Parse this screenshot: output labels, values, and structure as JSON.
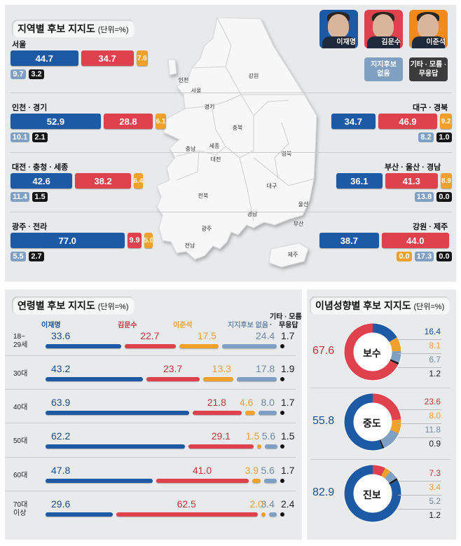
{
  "colors": {
    "lee_jaemyung": "#1d5aa6",
    "kim_moonsoo": "#e0424d",
    "lee_junseok": "#f0a02b",
    "no_candidate": "#7f9fc3",
    "other": "#151515",
    "lee_text": "#1c4f8e",
    "kim_text": "#c7333d",
    "junseok_text": "#e9a141",
    "nocand_text": "#6f89a8"
  },
  "regional": {
    "title": "지역별 후보 지지도",
    "unit": "(단위=%)",
    "legend": {
      "candidates": [
        {
          "name": "이재명",
          "bg": "#1d5aa6"
        },
        {
          "name": "김문수",
          "bg": "#e0424d"
        },
        {
          "name": "이준석",
          "bg": "#f08a1b"
        }
      ],
      "no_candidate": "지지후보 없음",
      "no_candidate_lines": [
        "지지후보",
        "없음"
      ],
      "other_lines": [
        "기타 · 모름 ·",
        "무응답"
      ]
    },
    "map_labels": [
      "인천",
      "서울",
      "경기",
      "강원",
      "충북",
      "충남",
      "세종",
      "대전",
      "경북",
      "대구",
      "전북",
      "경남",
      "울산",
      "부산",
      "광주",
      "전남",
      "제주"
    ]
  },
  "chart_data": [
    {
      "type": "bar",
      "title": "지역별 후보 지지도",
      "unit": "(단위=%)",
      "series_names": [
        "이재명",
        "김문수",
        "이준석",
        "지지후보 없음",
        "기타·모름·무응답"
      ],
      "categories": [
        "서울",
        "인천 · 경기",
        "대전 · 충청 · 세종",
        "광주 · 전라",
        "대구 · 경북",
        "부산 · 울산 · 경남",
        "강원 · 제주"
      ],
      "values": [
        [
          44.7,
          34.7,
          7.6,
          9.7,
          3.2
        ],
        [
          52.9,
          28.8,
          6.1,
          10.1,
          2.1
        ],
        [
          42.6,
          38.2,
          6.4,
          11.4,
          1.5
        ],
        [
          77.0,
          9.9,
          5.0,
          5.5,
          2.7
        ],
        [
          34.7,
          46.9,
          9.2,
          8.2,
          1.0
        ],
        [
          36.1,
          41.3,
          8.9,
          13.8,
          0.0
        ],
        [
          38.7,
          44.0,
          0.0,
          17.3,
          0.0
        ]
      ],
      "labels": [
        [
          "44.7",
          "34.7",
          "7.6",
          "9.7",
          "3.2"
        ],
        [
          "52.9",
          "28.8",
          "6.1",
          "10.1",
          "2.1"
        ],
        [
          "42.6",
          "38.2",
          "6.4",
          "11.4",
          "1.5"
        ],
        [
          "77.0",
          "9.9",
          "5.0",
          "5.5",
          "2.7"
        ],
        [
          "34.7",
          "46.9",
          "9.2",
          "8.2",
          "1.0"
        ],
        [
          "36.1",
          "41.3",
          "8.9",
          "13.8",
          "0.0"
        ],
        [
          "38.7",
          "44.0",
          "0.0",
          "17.3",
          "0.0"
        ]
      ]
    },
    {
      "type": "bar",
      "title": "연령별 후보 지지도",
      "unit": "(단위=%)",
      "series_names": [
        "이재명",
        "김문수",
        "이준석",
        "지지후보 없음",
        "기타 · 모름 · 무응답"
      ],
      "categories": [
        "18~ 29세",
        "30대",
        "40대",
        "50대",
        "60대",
        "70대 이상"
      ],
      "category_lines": [
        [
          "18~",
          "29세"
        ],
        [
          "30대"
        ],
        [
          "40대"
        ],
        [
          "50대"
        ],
        [
          "60대"
        ],
        [
          "70대",
          "이상"
        ]
      ],
      "values": [
        [
          33.6,
          22.7,
          17.5,
          24.4,
          1.7
        ],
        [
          43.2,
          23.7,
          13.3,
          17.8,
          1.9
        ],
        [
          63.9,
          21.8,
          4.6,
          8.0,
          1.7
        ],
        [
          62.2,
          29.1,
          1.5,
          5.6,
          1.5
        ],
        [
          47.8,
          41.0,
          3.9,
          5.6,
          1.7
        ],
        [
          29.6,
          62.5,
          2.0,
          3.4,
          2.4
        ]
      ],
      "labels": [
        [
          "33.6",
          "22.7",
          "17.5",
          "24.4",
          "1.7"
        ],
        [
          "43.2",
          "23.7",
          "13.3",
          "17.8",
          "1.9"
        ],
        [
          "63.9",
          "21.8",
          "4.6",
          "8.0",
          "1.7"
        ],
        [
          "62.2",
          "29.1",
          "1.5",
          "5.6",
          "1.5"
        ],
        [
          "47.8",
          "41.0",
          "3.9",
          "5.6",
          "1.7"
        ],
        [
          "29.6",
          "62.5",
          "2.0",
          "3.4",
          "2.4"
        ]
      ],
      "header_lines": [
        "이재명",
        "김문수",
        "이준석",
        "지지후보 없음",
        "기타 · 모름 ·",
        "무응답"
      ]
    },
    {
      "type": "pie",
      "title": "이념성향별 후보 지지도",
      "unit": "(단위=%)",
      "series_names": [
        "이재명",
        "김문수",
        "이준석",
        "지지후보 없음",
        "기타·모름·무응답"
      ],
      "categories": [
        "보수",
        "중도",
        "진보"
      ],
      "values": [
        [
          16.4,
          67.6,
          8.1,
          6.7,
          1.2
        ],
        [
          55.8,
          23.6,
          8.0,
          11.8,
          0.9
        ],
        [
          82.9,
          7.3,
          3.4,
          5.2,
          1.2
        ]
      ],
      "labels": [
        [
          "16.4",
          "67.6",
          "8.1",
          "6.7",
          "1.2"
        ],
        [
          "55.8",
          "23.6",
          "8.0",
          "11.8",
          "0.9"
        ],
        [
          "82.9",
          "7.3",
          "3.4",
          "5.2",
          "1.2"
        ]
      ],
      "leading_index": [
        1,
        0,
        0
      ]
    }
  ],
  "age": {
    "title": "연령별 후보 지지도",
    "unit": "(단위=%)"
  },
  "ideology": {
    "title": "이념성향별 후보 지지도",
    "unit": "(단위=%)"
  }
}
